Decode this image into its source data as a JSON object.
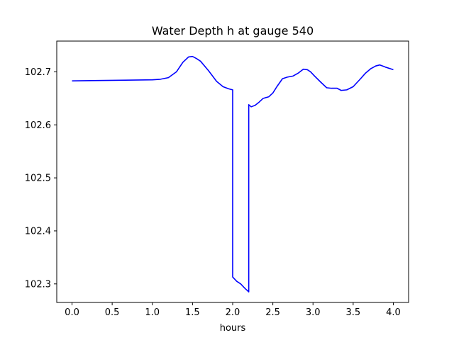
{
  "chart_data": {
    "type": "line",
    "title": "Water Depth h at gauge 540",
    "xlabel": "hours",
    "ylabel": "",
    "xlim": [
      -0.19,
      4.19
    ],
    "ylim": [
      102.265,
      102.758
    ],
    "xticks": [
      0.0,
      0.5,
      1.0,
      1.5,
      2.0,
      2.5,
      3.0,
      3.5,
      4.0
    ],
    "xtick_labels": [
      "0.0",
      "0.5",
      "1.0",
      "1.5",
      "2.0",
      "2.5",
      "3.0",
      "3.5",
      "4.0"
    ],
    "yticks": [
      102.3,
      102.4,
      102.5,
      102.6,
      102.7
    ],
    "ytick_labels": [
      "102.3",
      "102.4",
      "102.5",
      "102.6",
      "102.7"
    ],
    "grid": false,
    "series": [
      {
        "color": "#0000ff",
        "x": [
          0.0,
          0.5,
          1.0,
          1.1,
          1.2,
          1.3,
          1.38,
          1.45,
          1.5,
          1.55,
          1.6,
          1.7,
          1.8,
          1.88,
          1.95,
          2.0,
          2.0,
          2.05,
          2.1,
          2.15,
          2.2,
          2.2,
          2.23,
          2.28,
          2.33,
          2.38,
          2.45,
          2.5,
          2.55,
          2.62,
          2.68,
          2.75,
          2.82,
          2.88,
          2.93,
          2.97,
          3.02,
          3.1,
          3.17,
          3.23,
          3.3,
          3.35,
          3.42,
          3.5,
          3.58,
          3.65,
          3.72,
          3.78,
          3.83,
          3.9,
          4.0
        ],
        "y": [
          102.683,
          102.684,
          102.685,
          102.686,
          102.689,
          102.7,
          102.718,
          102.728,
          102.729,
          102.725,
          102.72,
          102.702,
          102.682,
          102.672,
          102.668,
          102.666,
          102.313,
          102.305,
          102.3,
          102.292,
          102.285,
          102.638,
          102.634,
          102.637,
          102.643,
          102.65,
          102.653,
          102.66,
          102.672,
          102.687,
          102.69,
          102.692,
          102.698,
          102.705,
          102.704,
          102.7,
          102.692,
          102.68,
          102.67,
          102.669,
          102.669,
          102.665,
          102.666,
          102.672,
          102.685,
          102.697,
          102.706,
          102.711,
          102.713,
          102.709,
          102.704
        ]
      }
    ]
  }
}
